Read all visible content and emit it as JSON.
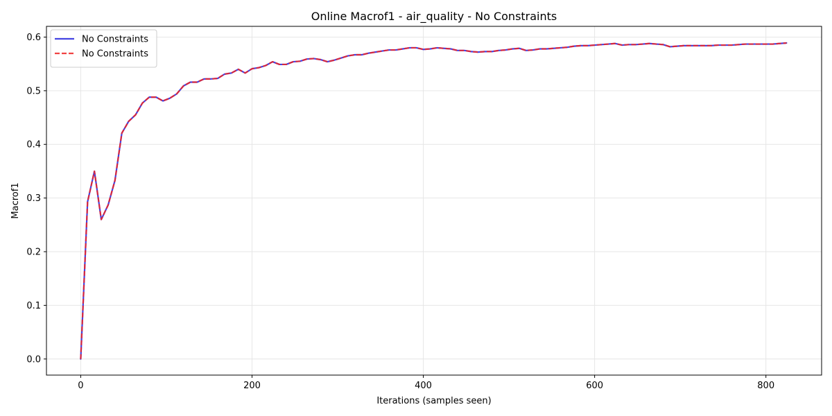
{
  "chart_data": {
    "type": "line",
    "title": "Online Macrof1 - air_quality - No Constraints",
    "xlabel": "Iterations (samples seen)",
    "ylabel": "Macrof1",
    "xlim": [
      -40,
      865
    ],
    "ylim": [
      -0.03,
      0.62
    ],
    "xticks": [
      0,
      200,
      400,
      600,
      800
    ],
    "yticks": [
      0.0,
      0.1,
      0.2,
      0.3,
      0.4,
      0.5,
      0.6
    ],
    "xtick_labels": [
      "0",
      "200",
      "400",
      "600",
      "800"
    ],
    "ytick_labels": [
      "0.0",
      "0.1",
      "0.2",
      "0.3",
      "0.4",
      "0.5",
      "0.6"
    ],
    "grid": true,
    "legend_position": "top-left",
    "x": [
      0,
      8,
      16,
      24,
      32,
      40,
      48,
      56,
      64,
      72,
      80,
      88,
      96,
      104,
      112,
      120,
      128,
      136,
      144,
      152,
      160,
      168,
      176,
      184,
      192,
      200,
      208,
      216,
      224,
      232,
      240,
      248,
      256,
      264,
      272,
      280,
      288,
      296,
      304,
      312,
      320,
      328,
      336,
      344,
      352,
      360,
      368,
      376,
      384,
      392,
      400,
      408,
      416,
      424,
      432,
      440,
      448,
      456,
      464,
      472,
      480,
      488,
      496,
      504,
      512,
      520,
      528,
      536,
      544,
      552,
      560,
      568,
      576,
      584,
      592,
      600,
      608,
      616,
      624,
      632,
      640,
      648,
      656,
      664,
      672,
      680,
      688,
      696,
      704,
      712,
      720,
      728,
      736,
      744,
      752,
      760,
      768,
      776,
      784,
      792,
      800,
      808,
      816,
      824
    ],
    "series": [
      {
        "name": "No Constraints",
        "color": "#2222dd",
        "style": "solid",
        "values": [
          0.0,
          0.293,
          0.35,
          0.26,
          0.287,
          0.333,
          0.421,
          0.443,
          0.455,
          0.477,
          0.488,
          0.488,
          0.481,
          0.486,
          0.494,
          0.509,
          0.516,
          0.516,
          0.522,
          0.522,
          0.523,
          0.531,
          0.533,
          0.54,
          0.533,
          0.541,
          0.543,
          0.547,
          0.554,
          0.549,
          0.549,
          0.554,
          0.555,
          0.559,
          0.56,
          0.558,
          0.554,
          0.557,
          0.561,
          0.565,
          0.567,
          0.567,
          0.57,
          0.572,
          0.574,
          0.576,
          0.576,
          0.578,
          0.58,
          0.58,
          0.577,
          0.578,
          0.58,
          0.579,
          0.578,
          0.575,
          0.575,
          0.573,
          0.572,
          0.573,
          0.573,
          0.575,
          0.576,
          0.578,
          0.579,
          0.575,
          0.576,
          0.578,
          0.578,
          0.579,
          0.58,
          0.581,
          0.583,
          0.584,
          0.584,
          0.585,
          0.586,
          0.587,
          0.588,
          0.585,
          0.586,
          0.586,
          0.587,
          0.588,
          0.587,
          0.586,
          0.582,
          0.583,
          0.584,
          0.584,
          0.584,
          0.584,
          0.584,
          0.585,
          0.585,
          0.585,
          0.586,
          0.587,
          0.587,
          0.587,
          0.587,
          0.587,
          0.588,
          0.589
        ]
      },
      {
        "name": "No Constraints",
        "color": "#ee2222",
        "style": "dashed",
        "values": [
          0.0,
          0.293,
          0.35,
          0.26,
          0.287,
          0.333,
          0.421,
          0.443,
          0.455,
          0.477,
          0.488,
          0.488,
          0.481,
          0.486,
          0.494,
          0.509,
          0.516,
          0.516,
          0.522,
          0.522,
          0.523,
          0.531,
          0.533,
          0.54,
          0.533,
          0.541,
          0.543,
          0.547,
          0.554,
          0.549,
          0.549,
          0.554,
          0.555,
          0.559,
          0.56,
          0.558,
          0.554,
          0.557,
          0.561,
          0.565,
          0.567,
          0.567,
          0.57,
          0.572,
          0.574,
          0.576,
          0.576,
          0.578,
          0.58,
          0.58,
          0.577,
          0.578,
          0.58,
          0.579,
          0.578,
          0.575,
          0.575,
          0.573,
          0.572,
          0.573,
          0.573,
          0.575,
          0.576,
          0.578,
          0.579,
          0.575,
          0.576,
          0.578,
          0.578,
          0.579,
          0.58,
          0.581,
          0.583,
          0.584,
          0.584,
          0.585,
          0.586,
          0.587,
          0.588,
          0.585,
          0.586,
          0.586,
          0.587,
          0.588,
          0.587,
          0.586,
          0.582,
          0.583,
          0.584,
          0.584,
          0.584,
          0.584,
          0.584,
          0.585,
          0.585,
          0.585,
          0.586,
          0.587,
          0.587,
          0.587,
          0.587,
          0.587,
          0.588,
          0.589
        ]
      }
    ]
  }
}
